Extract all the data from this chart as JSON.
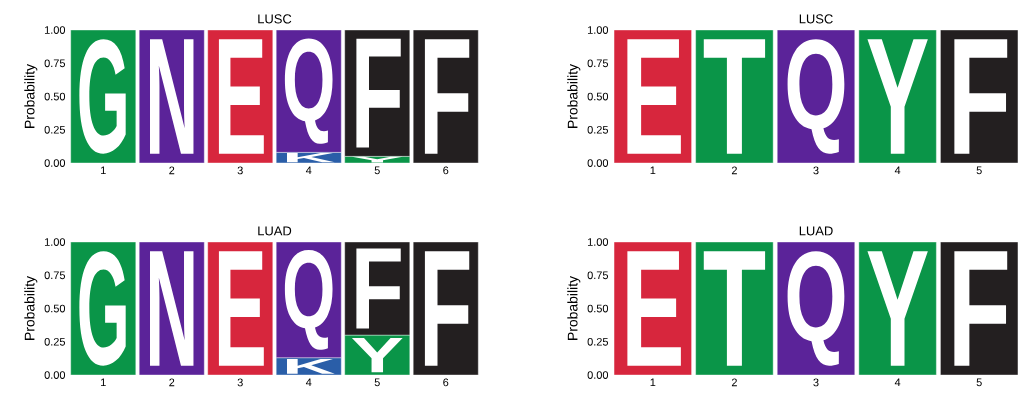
{
  "chart_data": [
    {
      "type": "bar",
      "stacked": true,
      "title": "LUSC",
      "ylabel": "Probability",
      "categories": [
        "1",
        "2",
        "3",
        "4",
        "5",
        "6"
      ],
      "ylim": [
        0,
        1
      ],
      "yticks": [
        {
          "value": 0,
          "label": "0.00"
        },
        {
          "value": 0.25,
          "label": "0.25"
        },
        {
          "value": 0.5,
          "label": "0.50"
        },
        {
          "value": 0.75,
          "label": "0.75"
        },
        {
          "value": 1,
          "label": "1.00"
        }
      ],
      "series": [
        {
          "name": "K",
          "color": "#2a5ea8",
          "values": [
            null,
            null,
            null,
            0.08,
            null,
            null
          ]
        },
        {
          "name": "Y",
          "color": "#0a9548",
          "values": [
            null,
            null,
            null,
            null,
            0.05,
            null
          ]
        },
        {
          "name": "G",
          "color": "#0a9548",
          "values": [
            1,
            null,
            null,
            null,
            null,
            null
          ]
        },
        {
          "name": "N",
          "color": "#5b2399",
          "values": [
            null,
            1,
            null,
            null,
            null,
            null
          ]
        },
        {
          "name": "E",
          "color": "#d7263d",
          "values": [
            null,
            null,
            1,
            null,
            null,
            null
          ]
        },
        {
          "name": "Q",
          "color": "#5b2399",
          "values": [
            null,
            null,
            null,
            0.92,
            null,
            null
          ]
        },
        {
          "name": "F",
          "color": "#231f20",
          "values": [
            null,
            null,
            null,
            null,
            0.95,
            1
          ]
        }
      ]
    },
    {
      "type": "bar",
      "stacked": true,
      "title": "LUSC",
      "ylabel": "Probability",
      "categories": [
        "1",
        "2",
        "3",
        "4",
        "5"
      ],
      "ylim": [
        0,
        1
      ],
      "yticks": [
        {
          "value": 0,
          "label": "0.00"
        },
        {
          "value": 0.25,
          "label": "0.25"
        },
        {
          "value": 0.5,
          "label": "0.50"
        },
        {
          "value": 0.75,
          "label": "0.75"
        },
        {
          "value": 1,
          "label": "1.00"
        }
      ],
      "series": [
        {
          "name": "E",
          "color": "#d7263d",
          "values": [
            1,
            null,
            null,
            null,
            null
          ]
        },
        {
          "name": "T",
          "color": "#0a9548",
          "values": [
            null,
            1,
            null,
            null,
            null
          ]
        },
        {
          "name": "Q",
          "color": "#5b2399",
          "values": [
            null,
            null,
            1,
            null,
            null
          ]
        },
        {
          "name": "Y",
          "color": "#0a9548",
          "values": [
            null,
            null,
            null,
            1,
            null
          ]
        },
        {
          "name": "F",
          "color": "#231f20",
          "values": [
            null,
            null,
            null,
            null,
            1
          ]
        }
      ]
    },
    {
      "type": "bar",
      "stacked": true,
      "title": "LUAD",
      "ylabel": "Probability",
      "categories": [
        "1",
        "2",
        "3",
        "4",
        "5",
        "6"
      ],
      "ylim": [
        0,
        1
      ],
      "yticks": [
        {
          "value": 0,
          "label": "0.00"
        },
        {
          "value": 0.25,
          "label": "0.25"
        },
        {
          "value": 0.5,
          "label": "0.50"
        },
        {
          "value": 0.75,
          "label": "0.75"
        },
        {
          "value": 1,
          "label": "1.00"
        }
      ],
      "series": [
        {
          "name": "K",
          "color": "#2a5ea8",
          "values": [
            null,
            null,
            null,
            0.13,
            null,
            null
          ]
        },
        {
          "name": "Y",
          "color": "#0a9548",
          "values": [
            null,
            null,
            null,
            null,
            0.3,
            null
          ]
        },
        {
          "name": "G",
          "color": "#0a9548",
          "values": [
            1,
            null,
            null,
            null,
            null,
            null
          ]
        },
        {
          "name": "N",
          "color": "#5b2399",
          "values": [
            null,
            1,
            null,
            null,
            null,
            null
          ]
        },
        {
          "name": "E",
          "color": "#d7263d",
          "values": [
            null,
            null,
            1,
            null,
            null,
            null
          ]
        },
        {
          "name": "Q",
          "color": "#5b2399",
          "values": [
            null,
            null,
            null,
            0.87,
            null,
            null
          ]
        },
        {
          "name": "F",
          "color": "#231f20",
          "values": [
            null,
            null,
            null,
            null,
            0.7,
            1
          ]
        }
      ]
    },
    {
      "type": "bar",
      "stacked": true,
      "title": "LUAD",
      "ylabel": "Probability",
      "categories": [
        "1",
        "2",
        "3",
        "4",
        "5"
      ],
      "ylim": [
        0,
        1
      ],
      "yticks": [
        {
          "value": 0,
          "label": "0.00"
        },
        {
          "value": 0.25,
          "label": "0.25"
        },
        {
          "value": 0.5,
          "label": "0.50"
        },
        {
          "value": 0.75,
          "label": "0.75"
        },
        {
          "value": 1,
          "label": "1.00"
        }
      ],
      "series": [
        {
          "name": "E",
          "color": "#d7263d",
          "values": [
            1,
            null,
            null,
            null,
            null
          ]
        },
        {
          "name": "T",
          "color": "#0a9548",
          "values": [
            null,
            1,
            null,
            null,
            null
          ]
        },
        {
          "name": "Q",
          "color": "#5b2399",
          "values": [
            null,
            null,
            1,
            null,
            null
          ]
        },
        {
          "name": "Y",
          "color": "#0a9548",
          "values": [
            null,
            null,
            null,
            1,
            null
          ]
        },
        {
          "name": "F",
          "color": "#231f20",
          "values": [
            null,
            null,
            null,
            null,
            1
          ]
        }
      ]
    }
  ]
}
